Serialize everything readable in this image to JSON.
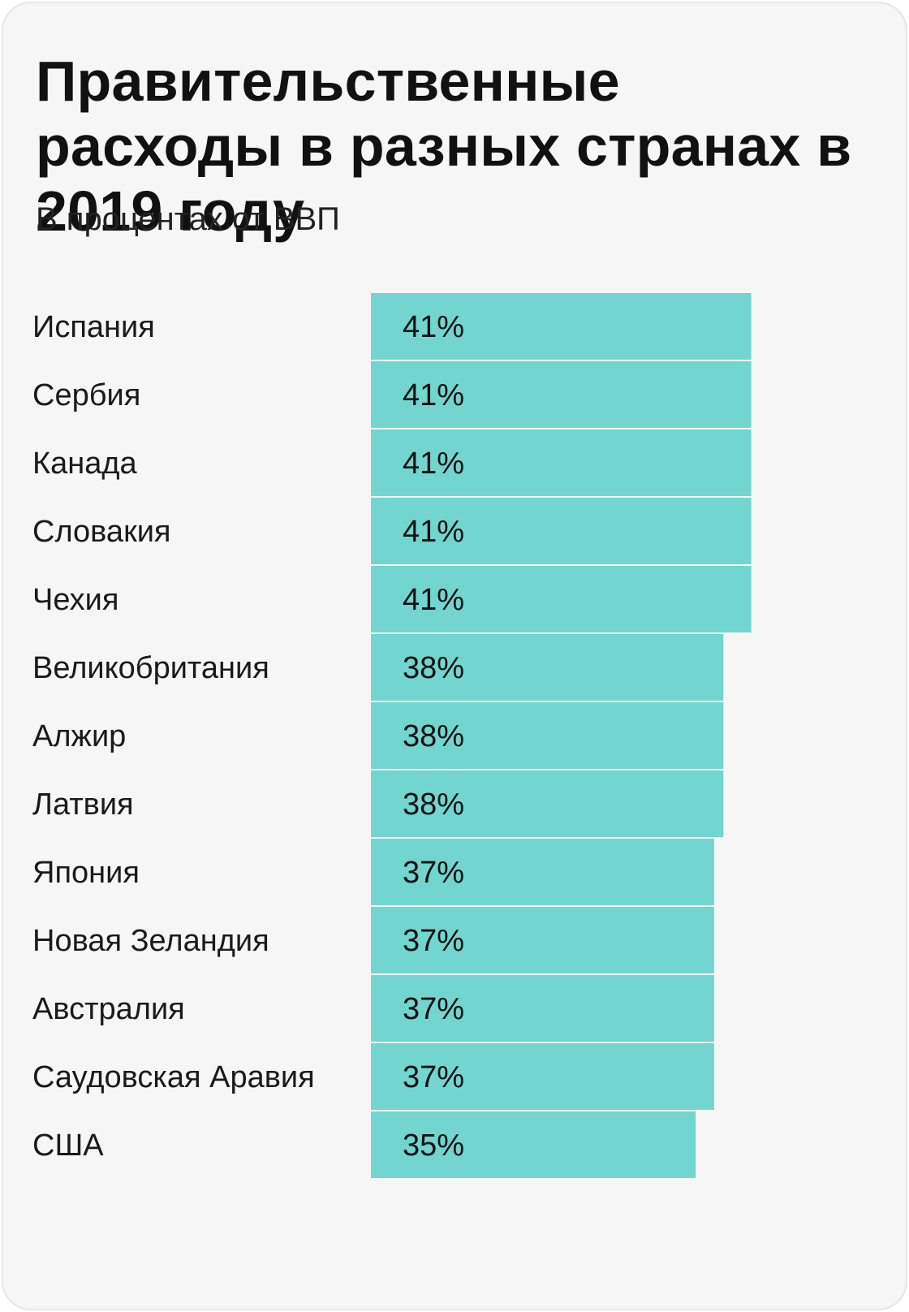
{
  "chart_data": {
    "type": "bar",
    "orientation": "horizontal",
    "title": "Правительственные расходы в разных странах в 2019 году",
    "subtitle": "В процентах от ВВП",
    "categories": [
      "Испания",
      "Сербия",
      "Канада",
      "Словакия",
      "Чехия",
      "Великобритания",
      "Алжир",
      "Латвия",
      "Япония",
      "Новая Зеландия",
      "Австралия",
      "Саудовская Аравия",
      "США"
    ],
    "values": [
      41,
      41,
      41,
      41,
      41,
      38,
      38,
      38,
      37,
      37,
      37,
      37,
      35
    ],
    "value_labels": [
      "41%",
      "41%",
      "41%",
      "41%",
      "41%",
      "38%",
      "38%",
      "38%",
      "37%",
      "37%",
      "37%",
      "37%",
      "35%"
    ],
    "unit": "%",
    "bar_color": "#72d5cf",
    "grid": false,
    "legend": "none"
  }
}
